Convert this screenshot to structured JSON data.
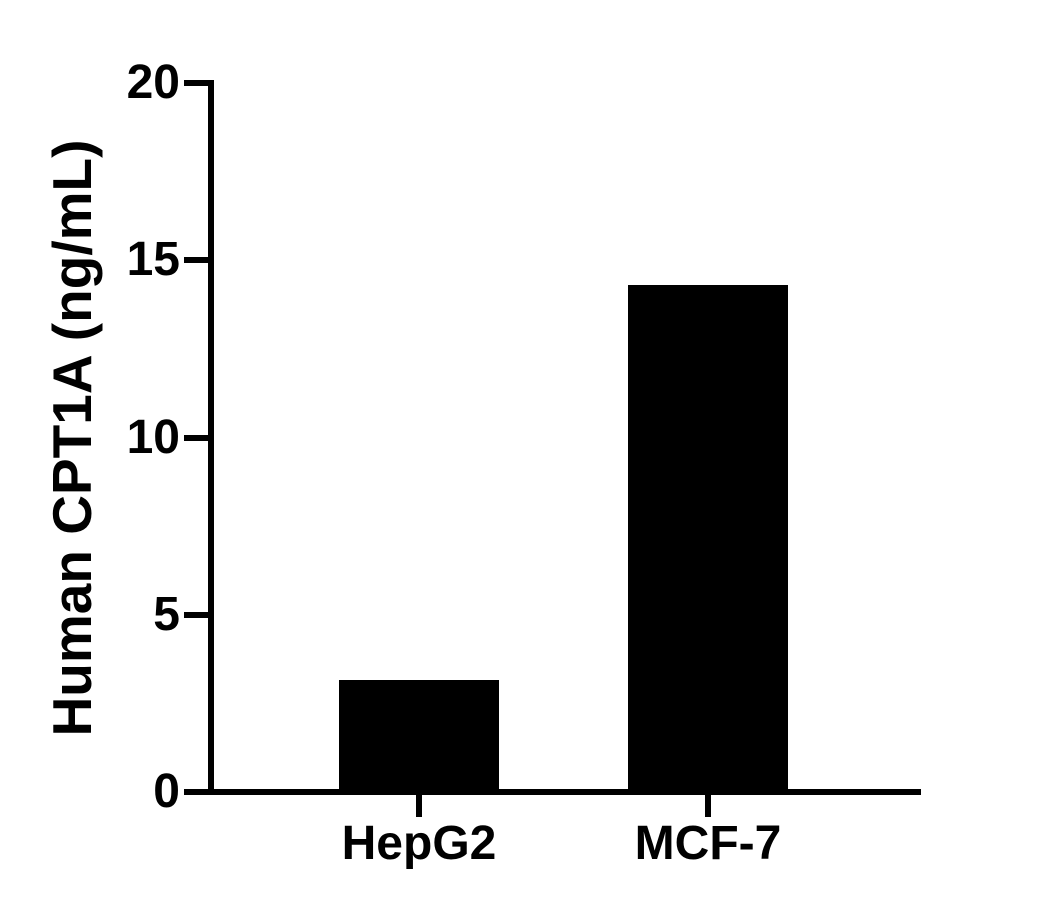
{
  "figure": {
    "background": "#ffffff"
  },
  "chart_data": {
    "type": "bar",
    "title": "",
    "xlabel": "",
    "ylabel": "Human CPT1A (ng/mL)",
    "categories": [
      "HepG2",
      "MCF-7"
    ],
    "values": [
      3.16,
      14.3
    ],
    "ylim": [
      0,
      20
    ],
    "yticks": [
      0,
      5,
      10,
      15,
      20
    ],
    "bar_color": "#000000",
    "axis_color": "#000000",
    "text_color": "#000000",
    "grid": false,
    "legend_position": "none"
  }
}
